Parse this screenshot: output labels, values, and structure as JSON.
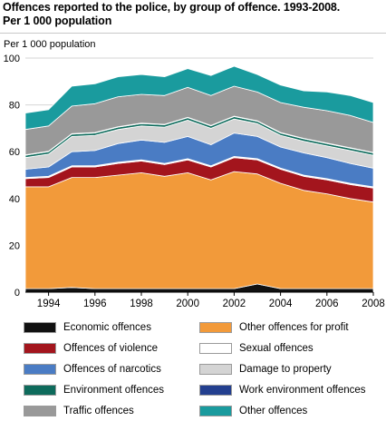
{
  "title_line1": "Offences reported to the police, by group of offence. 1993-2008.",
  "title_line2": "Per 1 000 population",
  "chart_data": {
    "type": "area",
    "stacked": true,
    "ylabel": "Per 1 000 population",
    "ylim": [
      0,
      100
    ],
    "yticks": [
      0,
      20,
      40,
      60,
      80,
      100
    ],
    "xlim": [
      1993,
      2008
    ],
    "xticks": [
      1994,
      1996,
      1998,
      2000,
      2002,
      2004,
      2006,
      2008
    ],
    "grid": "horizontal",
    "legend_position": "bottom",
    "x": [
      1993,
      1994,
      1995,
      1996,
      1997,
      1998,
      1999,
      2000,
      2001,
      2002,
      2003,
      2004,
      2005,
      2006,
      2007,
      2008
    ],
    "series": [
      {
        "name": "Economic offences",
        "color": "#111111",
        "values": [
          1.5,
          1.5,
          2.0,
          1.5,
          1.5,
          1.5,
          1.5,
          1.5,
          1.5,
          1.5,
          3.5,
          1.5,
          1.5,
          1.5,
          1.5,
          1.5
        ]
      },
      {
        "name": "Other offences for profit",
        "color": "#f29a3a",
        "values": [
          43.5,
          43.5,
          47.0,
          47.5,
          48.5,
          49.5,
          48.0,
          49.5,
          46.5,
          50.0,
          47.0,
          45.0,
          42.0,
          40.5,
          38.5,
          37.0
        ]
      },
      {
        "name": "Offences of violence",
        "color": "#a3151d",
        "values": [
          3.5,
          4.0,
          4.5,
          4.5,
          5.0,
          5.0,
          5.0,
          5.5,
          5.5,
          6.0,
          6.0,
          6.0,
          6.0,
          6.0,
          6.0,
          6.0
        ]
      },
      {
        "name": "Sexual offences",
        "color": "#ffffff",
        "values": [
          0.5,
          0.5,
          0.5,
          0.5,
          0.5,
          0.5,
          0.5,
          0.5,
          0.5,
          0.5,
          0.5,
          0.5,
          0.5,
          0.5,
          0.5,
          0.5
        ]
      },
      {
        "name": "Offences of narcotics",
        "color": "#4a7cc4",
        "values": [
          3.5,
          4.0,
          6.0,
          6.5,
          8.0,
          8.5,
          9.0,
          9.5,
          9.0,
          10.0,
          9.5,
          9.0,
          9.5,
          9.0,
          8.5,
          8.0
        ]
      },
      {
        "name": "Damage to property",
        "color": "#d4d4d4",
        "values": [
          5.0,
          5.5,
          6.5,
          6.5,
          6.0,
          6.0,
          6.5,
          7.0,
          7.0,
          6.0,
          5.5,
          5.0,
          5.0,
          5.0,
          5.5,
          5.5
        ]
      },
      {
        "name": "Environment offences",
        "color": "#0e6b5c",
        "values": [
          1.0,
          1.0,
          1.0,
          1.0,
          1.0,
          1.0,
          1.0,
          1.0,
          1.0,
          1.0,
          1.0,
          1.0,
          1.0,
          1.0,
          1.0,
          1.0
        ]
      },
      {
        "name": "Work environment offences",
        "color": "#233f8f",
        "values": [
          0.2,
          0.2,
          0.2,
          0.2,
          0.2,
          0.2,
          0.2,
          0.2,
          0.2,
          0.2,
          0.2,
          0.2,
          0.2,
          0.2,
          0.2,
          0.2
        ]
      },
      {
        "name": "Traffic offences",
        "color": "#999999",
        "values": [
          10.8,
          10.8,
          11.8,
          12.3,
          12.8,
          12.3,
          12.3,
          12.8,
          12.8,
          12.8,
          12.3,
          12.8,
          13.3,
          13.8,
          13.8,
          12.8
        ]
      },
      {
        "name": "Other offences",
        "color": "#1a9b9e",
        "values": [
          7.0,
          7.0,
          8.5,
          8.5,
          8.5,
          8.5,
          8.0,
          8.0,
          8.5,
          8.5,
          7.5,
          7.5,
          7.0,
          8.0,
          8.5,
          8.5
        ]
      }
    ]
  }
}
